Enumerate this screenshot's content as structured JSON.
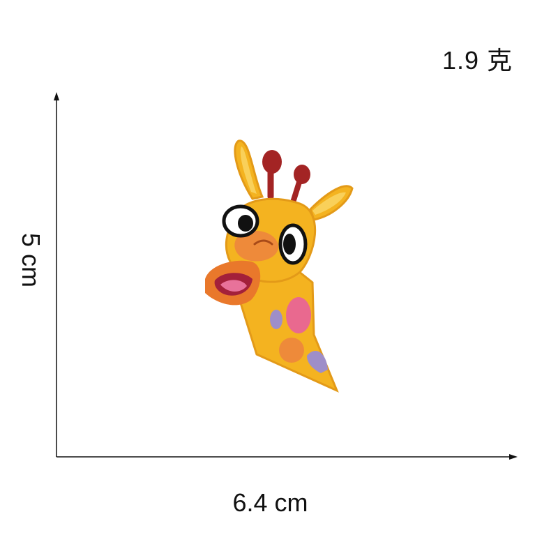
{
  "product": {
    "weight_label": "1.9 克",
    "width_label": "6.4 cm",
    "height_label": "5 cm",
    "image_subject": "giraffe-embroidery-patch"
  },
  "colors": {
    "axis": "#111111",
    "yellow": "#f4b320",
    "orange": "#e9782b",
    "horn_red": "#a32424",
    "mouth_pink": "#e8729a",
    "spot_pink": "#e9698f",
    "spot_orange": "#ee8a3a",
    "spot_purple": "#9e8ec9"
  }
}
